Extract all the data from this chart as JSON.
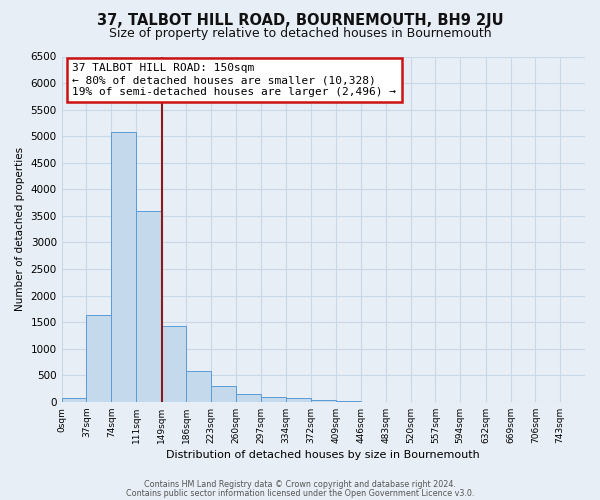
{
  "title": "37, TALBOT HILL ROAD, BOURNEMOUTH, BH9 2JU",
  "subtitle": "Size of property relative to detached houses in Bournemouth",
  "xlabel": "Distribution of detached houses by size in Bournemouth",
  "ylabel": "Number of detached properties",
  "bin_labels": [
    "0sqm",
    "37sqm",
    "74sqm",
    "111sqm",
    "149sqm",
    "186sqm",
    "223sqm",
    "260sqm",
    "297sqm",
    "334sqm",
    "372sqm",
    "409sqm",
    "446sqm",
    "483sqm",
    "520sqm",
    "557sqm",
    "594sqm",
    "632sqm",
    "669sqm",
    "706sqm",
    "743sqm"
  ],
  "bin_edges": [
    0,
    37,
    74,
    111,
    149,
    186,
    223,
    260,
    297,
    334,
    372,
    409,
    446,
    483,
    520,
    557,
    594,
    632,
    669,
    706,
    743,
    780
  ],
  "bar_heights": [
    80,
    1630,
    5080,
    3600,
    1430,
    580,
    300,
    155,
    100,
    65,
    40,
    10,
    5,
    0,
    0,
    0,
    0,
    0,
    0,
    0,
    0
  ],
  "bar_color": "#c5d9ed",
  "bar_edge_color": "#5b9bd5",
  "property_size": 150,
  "vline_color": "#8b1a1a",
  "annotation_line1": "37 TALBOT HILL ROAD: 150sqm",
  "annotation_line2": "← 80% of detached houses are smaller (10,328)",
  "annotation_line3": "19% of semi-detached houses are larger (2,496) →",
  "annotation_box_color": "#ffffff",
  "annotation_box_edge": "#cc1111",
  "ylim": [
    0,
    6500
  ],
  "yticks": [
    0,
    500,
    1000,
    1500,
    2000,
    2500,
    3000,
    3500,
    4000,
    4500,
    5000,
    5500,
    6000,
    6500
  ],
  "grid_color": "#c8d8e8",
  "bg_color": "#e8eef5",
  "footer_line1": "Contains HM Land Registry data © Crown copyright and database right 2024.",
  "footer_line2": "Contains public sector information licensed under the Open Government Licence v3.0.",
  "title_fontsize": 10.5,
  "subtitle_fontsize": 9
}
